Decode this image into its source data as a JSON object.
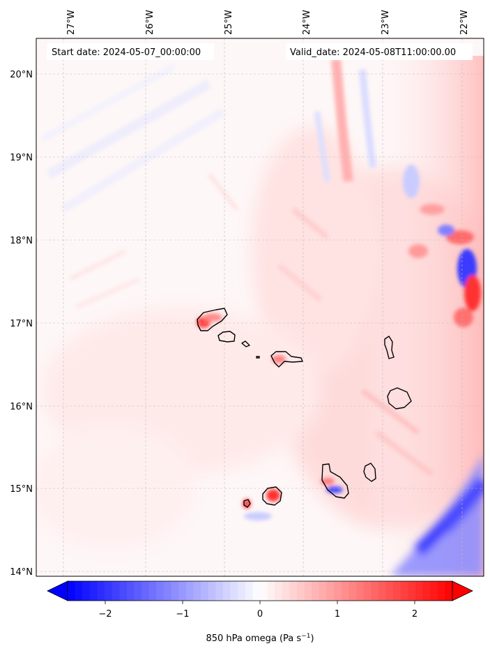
{
  "map": {
    "start_label": "Start date: 2024-05-07_00:00:00",
    "valid_label": "Valid_date: 2024-05-08T11:00:00.00",
    "lon_ticks": [
      "27°W",
      "26°W",
      "25°W",
      "24°W",
      "23°W",
      "22°W"
    ],
    "lat_ticks": [
      "20°N",
      "19°N",
      "18°N",
      "17°N",
      "16°N",
      "15°N",
      "14°N"
    ],
    "gridlines": true
  },
  "colorbar": {
    "label_main": "850 hPa omega (Pa s",
    "label_sup": "−1",
    "label_end": ")",
    "ticks": [
      "−2",
      "−1",
      "0",
      "1",
      "2"
    ],
    "range": [
      -2.6,
      2.6
    ],
    "colormap": "bwr",
    "low_color": "#0000ff",
    "mid_color": "#ffffff",
    "high_color": "#ff0000"
  }
}
